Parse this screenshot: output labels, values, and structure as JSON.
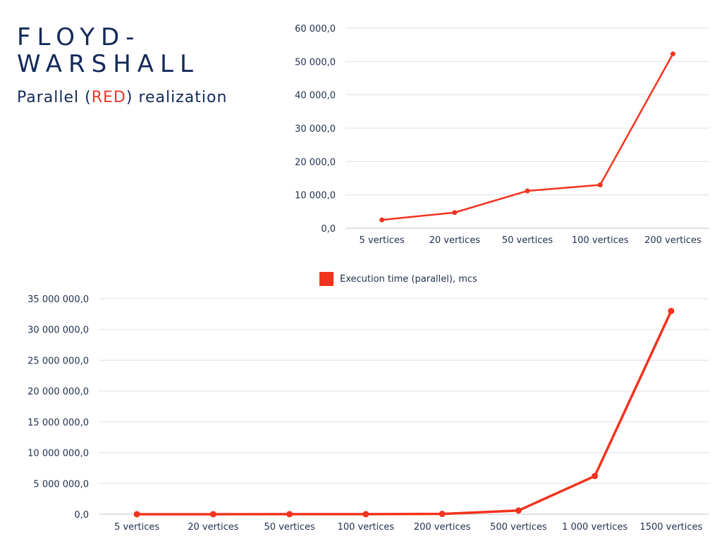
{
  "heading": {
    "title_line1": "FLOYD-",
    "title_line2": "WARSHALL",
    "subtitle_before": "Parallel (",
    "subtitle_accent": "RED",
    "subtitle_after": ") realization"
  },
  "legend": {
    "label": "Execution time (parallel), mcs",
    "color": "#f2331d"
  },
  "chart_data": [
    {
      "type": "line",
      "categories": [
        "5 vertices",
        "20 vertices",
        "50 vertices",
        "100 vertices",
        "200 vertices"
      ],
      "series": [
        {
          "name": "Execution time (parallel), mcs",
          "values": [
            2500,
            4700,
            11200,
            13000,
            52300
          ],
          "color": "#f2331d"
        }
      ],
      "ylim": [
        0,
        60000
      ],
      "yticks": [
        0,
        10000,
        20000,
        30000,
        40000,
        50000,
        60000
      ],
      "ytick_labels": [
        "0,0",
        "10 000,0",
        "20 000,0",
        "30 000,0",
        "40 000,0",
        "50 000,0",
        "60 000,0"
      ],
      "grid": true,
      "legend": "bottom"
    },
    {
      "type": "line",
      "categories": [
        "5 vertices",
        "20 vertices",
        "50 vertices",
        "100 vertices",
        "200 vertices",
        "500 vertices",
        "1 000 vertices",
        "1500 vertices"
      ],
      "series": [
        {
          "name": "Execution time (parallel), mcs",
          "values": [
            2500,
            4700,
            11200,
            13000,
            52300,
            600000,
            6200000,
            33000000
          ],
          "color": "#f2331d"
        }
      ],
      "ylim": [
        0,
        35000000
      ],
      "yticks": [
        0,
        5000000,
        10000000,
        15000000,
        20000000,
        25000000,
        30000000,
        35000000
      ],
      "ytick_labels": [
        "0,0",
        "5 000 000,0",
        "10 000 000,0",
        "15 000 000,0",
        "20 000 000,0",
        "25 000 000,0",
        "30 000 000,0",
        "35 000 000,0"
      ],
      "grid": true,
      "legend": "top"
    }
  ]
}
